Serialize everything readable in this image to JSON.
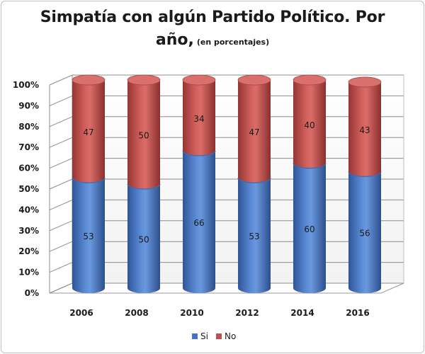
{
  "title": {
    "main": "Simpatía con algún Partido Político. Por",
    "line2": "año,",
    "subtitle": "(en porcentajes)"
  },
  "colors": {
    "si": "#4472c4",
    "no": "#c0504d"
  },
  "chart_data": {
    "type": "bar",
    "stacked": true,
    "title": "Simpatía con algún Partido Político. Por año, (en porcentajes)",
    "categories": [
      "2006",
      "2008",
      "2010",
      "2012",
      "2014",
      "2016"
    ],
    "series": [
      {
        "name": "Si",
        "values": [
          53,
          50,
          66,
          53,
          60,
          56
        ]
      },
      {
        "name": "No",
        "values": [
          47,
          50,
          34,
          47,
          40,
          43
        ]
      }
    ],
    "ylim": [
      0,
      100
    ],
    "yticks": [
      "0%",
      "10%",
      "20%",
      "30%",
      "40%",
      "50%",
      "60%",
      "70%",
      "80%",
      "90%",
      "100%"
    ],
    "grid": true,
    "legend": "bottom",
    "xlabel": "",
    "ylabel": ""
  }
}
